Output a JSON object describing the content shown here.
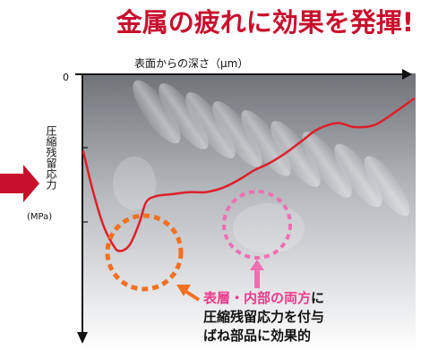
{
  "headline": "金属の疲れに効果を発揮!",
  "chart_data": {
    "type": "line",
    "xlabel": "表面からの深さ（μm）",
    "ylabel": "圧縮残留応力",
    "yunit": "(MPa)",
    "y_origin_label": "0",
    "x_direction": "depth increases to the right",
    "y_direction": "compressive stress increases downward",
    "series": [
      {
        "points": [
          [
            0,
            0.62
          ],
          [
            3,
            0.42
          ],
          [
            6,
            0.26
          ],
          [
            9,
            0.16
          ],
          [
            11,
            0.13
          ],
          [
            14,
            0.16
          ],
          [
            17,
            0.27
          ],
          [
            19,
            0.37
          ],
          [
            22,
            0.4
          ],
          [
            27,
            0.41
          ],
          [
            32,
            0.42
          ],
          [
            37,
            0.42
          ],
          [
            42,
            0.44
          ],
          [
            47,
            0.48
          ],
          [
            52,
            0.53
          ],
          [
            56,
            0.56
          ],
          [
            61,
            0.61
          ],
          [
            66,
            0.67
          ],
          [
            71,
            0.73
          ],
          [
            77,
            0.76
          ],
          [
            82,
            0.74
          ],
          [
            88,
            0.75
          ],
          [
            94,
            0.81
          ],
          [
            100,
            0.88
          ]
        ],
        "color": "#dd1f2a"
      }
    ],
    "highlights": [
      {
        "label": "表層",
        "color": "#f37021",
        "style": "dashed-circle"
      },
      {
        "label": "内部",
        "color": "#ee6fb2",
        "style": "dashed-circle"
      }
    ]
  },
  "annotation": {
    "highlight": "表層・内部の両方",
    "line1_rest": "に",
    "line2": "圧縮残留応力を付与",
    "line3": "ばね部品に効果的"
  },
  "colors": {
    "headline": "#c8102e",
    "arrow": "#c8102e",
    "curve": "#dd1f2a",
    "circle_surface": "#f37021",
    "circle_inner": "#ee6fb2",
    "annotation_highlight": "#ee3a8c"
  }
}
